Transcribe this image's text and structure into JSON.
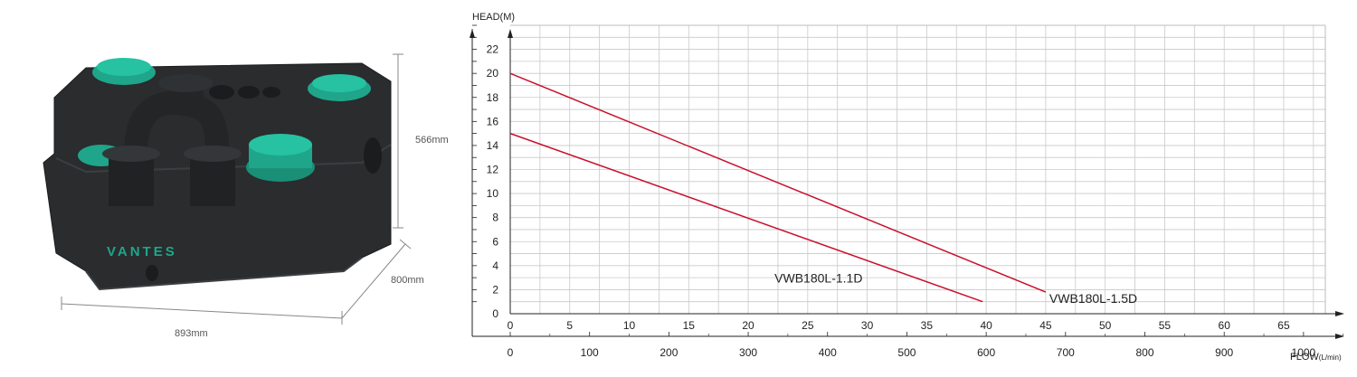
{
  "product": {
    "brand_logo": "VANTES",
    "dimensions": {
      "width": "893mm",
      "depth": "800mm",
      "height": "566mm"
    },
    "colors": {
      "body": "#2a2c2e",
      "accent": "#1fa58a"
    }
  },
  "chart_data": {
    "type": "line",
    "y_axis_label": "HEAD(M)",
    "x_axis_label": "FLOW(L/min)",
    "x_axis_label_main": "FLOW",
    "x_axis_label_unit": "(L/min)",
    "x_primary_ticks": [
      0,
      5,
      10,
      15,
      20,
      25,
      30,
      35,
      40,
      45,
      50,
      55,
      60,
      65
    ],
    "x_secondary_ticks": [
      0,
      100,
      200,
      300,
      400,
      500,
      600,
      700,
      800,
      900,
      1000
    ],
    "y_ticks": [
      0,
      2,
      4,
      6,
      8,
      10,
      12,
      14,
      16,
      18,
      20,
      22
    ],
    "xlim": [
      0,
      68.5
    ],
    "ylim": [
      0,
      24
    ],
    "grid": true,
    "line_color": "#c8102e",
    "series": [
      {
        "name": "VWB180L-1.1D",
        "points": [
          [
            0,
            15
          ],
          [
            39.7,
            1
          ]
        ]
      },
      {
        "name": "VWB180L-1.5D",
        "points": [
          [
            0,
            20
          ],
          [
            45,
            1.8
          ]
        ]
      }
    ]
  }
}
